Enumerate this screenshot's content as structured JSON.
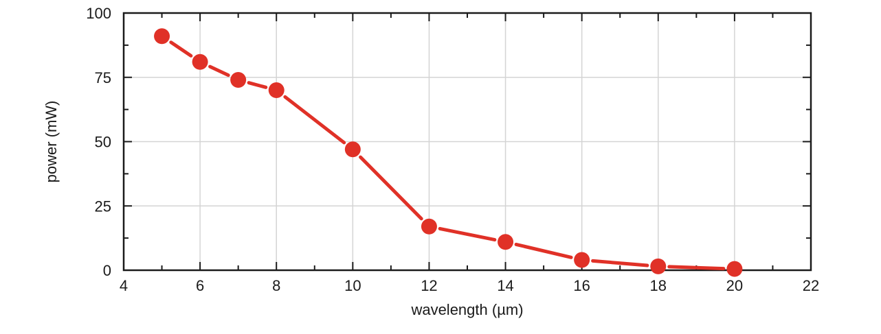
{
  "chart_data": {
    "type": "line",
    "title": "",
    "xlabel": "wavelength (µm)",
    "ylabel": "power (mW)",
    "xlim": [
      4,
      22
    ],
    "ylim": [
      0,
      100
    ],
    "x_ticks": [
      4,
      6,
      8,
      10,
      12,
      14,
      16,
      18,
      20,
      22
    ],
    "y_ticks": [
      0,
      25,
      50,
      75,
      100
    ],
    "grid": true,
    "series": [
      {
        "name": "power",
        "color": "#e03127",
        "x": [
          5,
          6,
          7,
          8,
          10,
          12,
          14,
          16,
          18,
          20
        ],
        "y": [
          91,
          81,
          74,
          70,
          47,
          17,
          11,
          4,
          1.5,
          0.5
        ]
      }
    ]
  }
}
